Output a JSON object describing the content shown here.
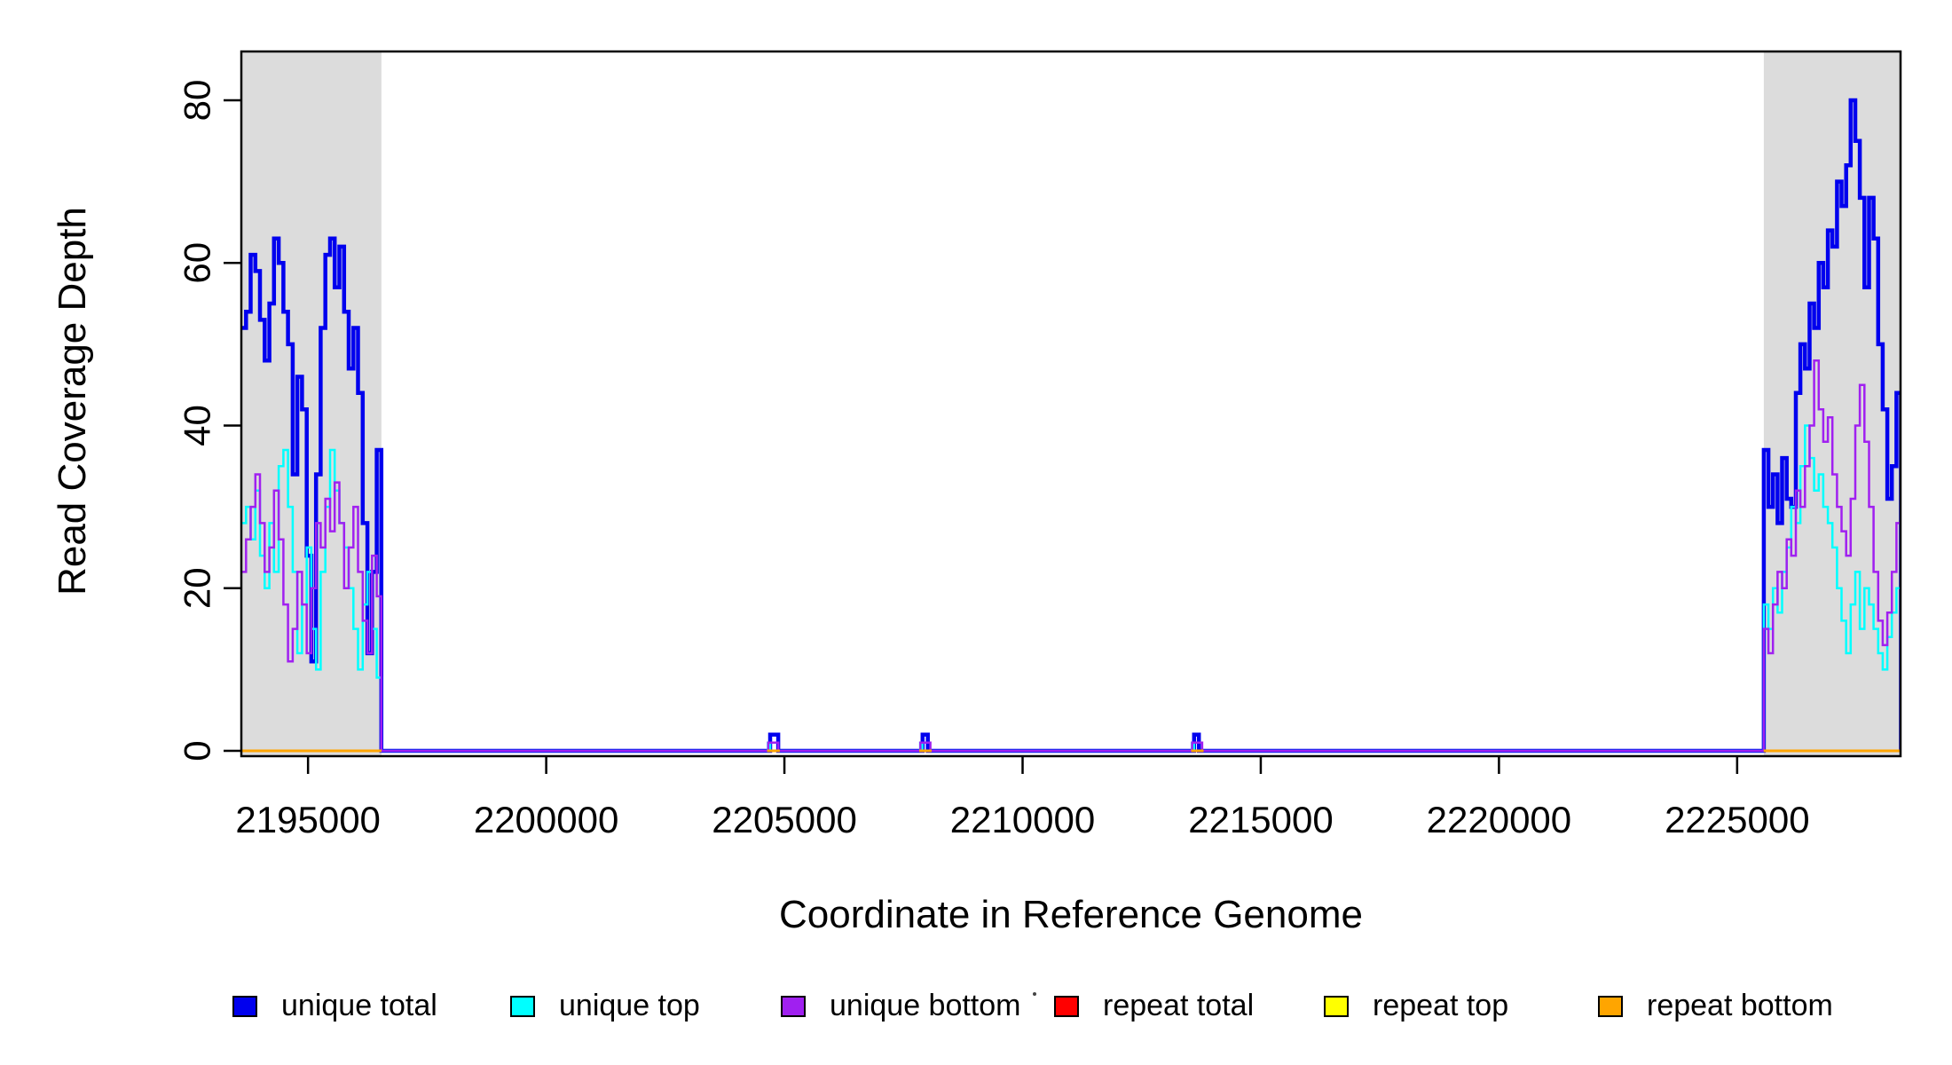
{
  "chart_data": {
    "type": "line",
    "subtype": "step",
    "title": "",
    "xlabel": "Coordinate in Reference Genome",
    "ylabel": "Read Coverage Depth",
    "xlim": [
      2193600,
      2228430
    ],
    "ylim": [
      0,
      86
    ],
    "xticks": [
      2195000,
      2200000,
      2205000,
      2210000,
      2215000,
      2220000,
      2225000
    ],
    "yticks": [
      0,
      20,
      40,
      60,
      80
    ],
    "grid": false,
    "legend_position": "bottom",
    "shade_color": "#DCDCDC",
    "shaded_regions": [
      {
        "x0": 2193600,
        "x1": 2196540
      },
      {
        "x0": 2225560,
        "x1": 2228430
      }
    ],
    "series": [
      {
        "name": "unique total",
        "color": "#0000EE",
        "lw": 4.5,
        "baseline_zero": true,
        "segments": [
          {
            "x0": 2193600,
            "dx": 98,
            "values": [
              52,
              54,
              61,
              59,
              53,
              48,
              55,
              63,
              60,
              54,
              50,
              34,
              46,
              42,
              24,
              11,
              34,
              52,
              61,
              63,
              57,
              62,
              54,
              47,
              52,
              44,
              28,
              12,
              22,
              37
            ]
          },
          {
            "x0": 2204700,
            "dx": 85,
            "values": [
              2,
              2
            ]
          },
          {
            "x0": 2207900,
            "dx": 110,
            "values": [
              2
            ]
          },
          {
            "x0": 2213600,
            "dx": 100,
            "values": [
              2
            ]
          },
          {
            "x0": 2225560,
            "dx": 96,
            "values": [
              37,
              30,
              34,
              28,
              36,
              31,
              30,
              44,
              50,
              47,
              55,
              52,
              60,
              57,
              64,
              62,
              70,
              67,
              72,
              80,
              75,
              68,
              57,
              68,
              63,
              50,
              42,
              31,
              35,
              44
            ]
          }
        ]
      },
      {
        "name": "unique top",
        "color": "#00FFFF",
        "lw": 2.5,
        "baseline_zero": true,
        "segments": [
          {
            "x0": 2193600,
            "dx": 98,
            "values": [
              28,
              30,
              26,
              32,
              24,
              20,
              28,
              22,
              35,
              37,
              30,
              22,
              12,
              18,
              25,
              15,
              10,
              22,
              30,
              37,
              32,
              28,
              25,
              20,
              15,
              10,
              18,
              22,
              15,
              9
            ]
          },
          {
            "x0": 2204655,
            "dx": 45,
            "values": [
              1
            ]
          },
          {
            "x0": 2207850,
            "dx": 45,
            "values": [
              1
            ]
          },
          {
            "x0": 2213555,
            "dx": 45,
            "values": [
              1
            ]
          },
          {
            "x0": 2225560,
            "dx": 96,
            "values": [
              18,
              15,
              20,
              17,
              22,
              25,
              30,
              28,
              35,
              40,
              36,
              32,
              34,
              30,
              28,
              25,
              20,
              16,
              12,
              18,
              22,
              15,
              20,
              18,
              15,
              12,
              10,
              14,
              17,
              20
            ]
          }
        ]
      },
      {
        "name": "unique bottom",
        "color": "#A020F0",
        "lw": 2.5,
        "baseline_zero": true,
        "segments": [
          {
            "x0": 2193600,
            "dx": 98,
            "values": [
              22,
              26,
              30,
              34,
              28,
              22,
              25,
              32,
              26,
              18,
              11,
              15,
              22,
              18,
              12,
              20,
              28,
              25,
              31,
              27,
              33,
              28,
              20,
              25,
              30,
              22,
              16,
              12,
              24,
              19
            ]
          },
          {
            "x0": 2204660,
            "dx": 105,
            "values": [
              1,
              1
            ]
          },
          {
            "x0": 2207855,
            "dx": 105,
            "values": [
              1,
              1
            ]
          },
          {
            "x0": 2213560,
            "dx": 105,
            "values": [
              1,
              1
            ]
          },
          {
            "x0": 2225560,
            "dx": 96,
            "values": [
              15,
              12,
              18,
              22,
              20,
              26,
              24,
              32,
              30,
              35,
              40,
              48,
              42,
              38,
              41,
              34,
              30,
              27,
              24,
              31,
              40,
              45,
              38,
              30,
              22,
              16,
              13,
              17,
              22,
              28
            ]
          }
        ]
      },
      {
        "name": "repeat total",
        "color": "#FF0000",
        "lw": 3,
        "baseline_zero": false,
        "segments": [
          {
            "x0": 2193600,
            "dx": 2940,
            "values": [
              0
            ]
          },
          {
            "x0": 2204640,
            "dx": 260,
            "values": [
              0
            ]
          },
          {
            "x0": 2207830,
            "dx": 260,
            "values": [
              0
            ]
          },
          {
            "x0": 2213540,
            "dx": 260,
            "values": [
              0
            ]
          },
          {
            "x0": 2225560,
            "dx": 2870,
            "values": [
              0
            ]
          }
        ]
      },
      {
        "name": "repeat top",
        "color": "#FFFF00",
        "lw": 3,
        "baseline_zero": false,
        "segments": [
          {
            "x0": 2193600,
            "dx": 2940,
            "values": [
              0
            ]
          },
          {
            "x0": 2204640,
            "dx": 260,
            "values": [
              0
            ]
          },
          {
            "x0": 2207830,
            "dx": 260,
            "values": [
              0
            ]
          },
          {
            "x0": 2213540,
            "dx": 260,
            "values": [
              0
            ]
          },
          {
            "x0": 2225560,
            "dx": 2870,
            "values": [
              0
            ]
          }
        ]
      },
      {
        "name": "repeat bottom",
        "color": "#FFA500",
        "lw": 3,
        "baseline_zero": false,
        "segments": [
          {
            "x0": 2193600,
            "dx": 2940,
            "values": [
              0
            ]
          },
          {
            "x0": 2204640,
            "dx": 260,
            "values": [
              0
            ]
          },
          {
            "x0": 2207830,
            "dx": 260,
            "values": [
              0
            ]
          },
          {
            "x0": 2213540,
            "dx": 260,
            "values": [
              0
            ]
          },
          {
            "x0": 2225560,
            "dx": 2870,
            "values": [
              0
            ]
          }
        ]
      }
    ]
  },
  "legend": {
    "items": [
      {
        "label": "unique total",
        "color": "#0000EE"
      },
      {
        "label": "unique top",
        "color": "#00FFFF"
      },
      {
        "label": "unique bottom",
        "color": "#A020F0"
      },
      {
        "label": "repeat total",
        "color": "#FF0000"
      },
      {
        "label": "repeat top",
        "color": "#FFFF00"
      },
      {
        "label": "repeat bottom",
        "color": "#FFA500"
      }
    ]
  }
}
